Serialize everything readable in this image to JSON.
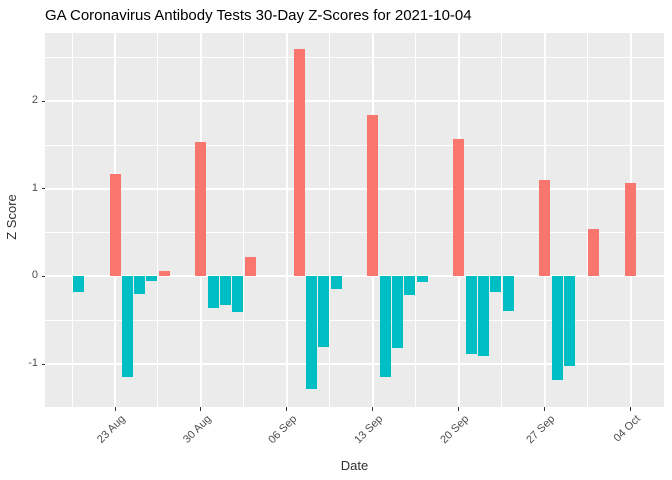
{
  "chart_data": {
    "type": "bar",
    "title": "GA Coronavirus Antibody Tests 30-Day Z-Scores for 2021-10-04",
    "xlabel": "Date",
    "ylabel": "Z Score",
    "legend": "none",
    "grid": "white major and minor gridlines on gray panel",
    "x_tick_labels": [
      "23 Aug",
      "30 Aug",
      "06 Sep",
      "13 Sep",
      "20 Sep",
      "27 Sep",
      "04 Oct"
    ],
    "x_tick_days": [
      3,
      10,
      17,
      24,
      31,
      38,
      45
    ],
    "x_minor_days": [
      -0.5,
      6.5,
      13.5,
      20.5,
      27.5,
      34.5,
      41.5
    ],
    "y_major_ticks": [
      -1,
      0,
      1,
      2
    ],
    "y_minor_ticks": [
      -0.5,
      0.5,
      1.5,
      2.5
    ],
    "xlim_days": [
      -2.7,
      47.7
    ],
    "ylim": [
      -1.49,
      2.78
    ],
    "colors": {
      "positive": "#F8766D",
      "negative": "#00BFC4",
      "panel": "#EBEBEB",
      "gridline": "#FFFFFF",
      "tick_text": "#4D4D4D",
      "axis_title": "#303030",
      "title_text": "#000000"
    },
    "bars": [
      {
        "date": "20 Aug",
        "day": 0,
        "value": -0.18
      },
      {
        "date": "23 Aug",
        "day": 3,
        "value": 1.17
      },
      {
        "date": "24 Aug",
        "day": 4,
        "value": -1.15
      },
      {
        "date": "25 Aug",
        "day": 5,
        "value": -0.2
      },
      {
        "date": "26 Aug",
        "day": 6,
        "value": -0.05
      },
      {
        "date": "27 Aug",
        "day": 7,
        "value": 0.06
      },
      {
        "date": "30 Aug",
        "day": 10,
        "value": 1.53
      },
      {
        "date": "31 Aug",
        "day": 11,
        "value": -0.36
      },
      {
        "date": "01 Sep",
        "day": 12,
        "value": -0.32
      },
      {
        "date": "02 Sep",
        "day": 13,
        "value": -0.4
      },
      {
        "date": "03 Sep",
        "day": 14,
        "value": 0.22
      },
      {
        "date": "07 Sep",
        "day": 18,
        "value": 2.6
      },
      {
        "date": "08 Sep",
        "day": 19,
        "value": -1.29
      },
      {
        "date": "09 Sep",
        "day": 20,
        "value": -0.81
      },
      {
        "date": "10 Sep",
        "day": 21,
        "value": -0.14
      },
      {
        "date": "13 Sep",
        "day": 24,
        "value": 1.84
      },
      {
        "date": "14 Sep",
        "day": 25,
        "value": -1.15
      },
      {
        "date": "15 Sep",
        "day": 26,
        "value": -0.82
      },
      {
        "date": "16 Sep",
        "day": 27,
        "value": -0.21
      },
      {
        "date": "17 Sep",
        "day": 28,
        "value": -0.06
      },
      {
        "date": "20 Sep",
        "day": 31,
        "value": 1.57
      },
      {
        "date": "21 Sep",
        "day": 32,
        "value": -0.88
      },
      {
        "date": "22 Sep",
        "day": 33,
        "value": -0.91
      },
      {
        "date": "23 Sep",
        "day": 34,
        "value": -0.18
      },
      {
        "date": "24 Sep",
        "day": 35,
        "value": -0.39
      },
      {
        "date": "27 Sep",
        "day": 38,
        "value": 1.1
      },
      {
        "date": "28 Sep",
        "day": 39,
        "value": -1.18
      },
      {
        "date": "29 Sep",
        "day": 40,
        "value": -1.02
      },
      {
        "date": "01 Oct",
        "day": 42,
        "value": 0.54
      },
      {
        "date": "04 Oct",
        "day": 45,
        "value": 1.07
      }
    ]
  }
}
